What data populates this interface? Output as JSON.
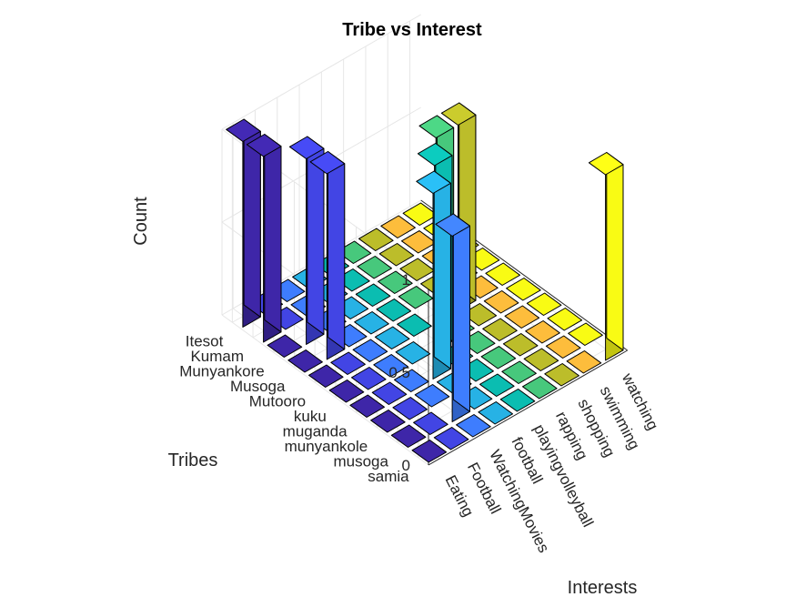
{
  "chart_data": {
    "type": "bar3",
    "title": "Tribe vs Interest",
    "xlabel": "Interests",
    "ylabel": "Tribes",
    "zlabel": "Count",
    "zlim": [
      0,
      1
    ],
    "zticks": [
      "0",
      "0.5",
      "1"
    ],
    "interests": [
      "Eating",
      "Football",
      "WatchingMovies",
      "football",
      "playingvolleyball",
      "rapping",
      "shopping",
      "swimming",
      "watching"
    ],
    "tribes": [
      "Itesot",
      "Kumam",
      "Munyankore",
      "Musoga",
      "Mutooro",
      "kuku",
      "muganda",
      "munyankole",
      "musoga",
      "samia"
    ],
    "counts": [
      [
        1,
        0,
        0,
        0,
        0,
        0,
        0,
        0,
        0
      ],
      [
        1,
        0,
        0,
        0,
        0,
        0,
        0,
        0,
        0
      ],
      [
        0,
        1,
        0,
        0,
        0,
        0,
        0,
        0,
        0
      ],
      [
        0,
        1,
        0,
        0,
        0,
        0,
        0,
        0,
        0
      ],
      [
        0,
        0,
        0,
        0,
        0,
        1,
        1,
        0,
        0
      ],
      [
        0,
        0,
        0,
        0,
        1,
        0,
        0,
        0,
        0
      ],
      [
        0,
        0,
        0,
        1,
        0,
        0,
        0,
        0,
        0
      ],
      [
        0,
        0,
        0,
        0,
        0,
        0,
        0,
        0,
        0
      ],
      [
        0,
        0,
        1,
        0,
        0,
        0,
        0,
        0,
        0
      ],
      [
        0,
        0,
        0,
        0,
        0,
        0,
        0,
        0,
        1
      ]
    ],
    "colormap": [
      "#3e26a8",
      "#4245e4",
      "#3e7dfe",
      "#27b2e5",
      "#0bbdb1",
      "#47c87c",
      "#bcbd2a",
      "#fdbd3c",
      "#f9fb14"
    ],
    "grid": true,
    "view": "3d-az-37.5-el-30"
  }
}
